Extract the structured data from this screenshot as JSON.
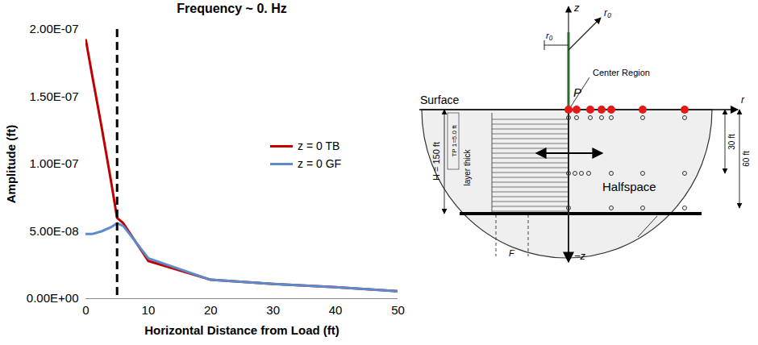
{
  "chart_data": {
    "type": "line",
    "title": "Frequency ~ 0. Hz",
    "x_label": "Horizontal Distance from Load (ft)",
    "y_label": "Amplitude (ft)",
    "x": [
      0,
      1,
      2.5,
      4,
      5,
      6,
      10,
      20,
      30,
      40,
      50
    ],
    "series": [
      {
        "name": "z = 0 TB",
        "color": "#c00000",
        "line_style": "solid",
        "values": [
          1.92e-07,
          1.66e-07,
          1.28e-07,
          8.8e-08,
          6e-08,
          5.6e-08,
          2.8e-08,
          1.4e-08,
          1.1e-08,
          8.5e-09,
          5.5e-09
        ]
      },
      {
        "name": "z = 0 GF",
        "color": "#5b8bc9",
        "line_style": "solid",
        "values": [
          4.8e-08,
          4.8e-08,
          5e-08,
          5.3e-08,
          5.6e-08,
          5.4e-08,
          3e-08,
          1.4e-08,
          1.1e-08,
          8.5e-09,
          5.5e-09
        ]
      }
    ],
    "xlim": [
      0,
      50
    ],
    "xticks": [
      0,
      10,
      20,
      30,
      40,
      50
    ],
    "ylim": [
      0,
      2e-07
    ],
    "yticks": [
      {
        "value": 0,
        "label": "0.00E+00"
      },
      {
        "value": 5e-08,
        "label": "5.00E-08"
      },
      {
        "value": 1e-07,
        "label": "1.00E-07"
      },
      {
        "value": 1.5e-07,
        "label": "1.50E-07"
      },
      {
        "value": 2e-07,
        "label": "2.00E-07"
      }
    ],
    "grid": false,
    "legend": "right",
    "vline": {
      "x": 5,
      "line_style": "dashed",
      "color": "#000000"
    }
  },
  "diagram": {
    "axis_up": "z",
    "axis_down": "−z",
    "radial_diag": "r₀",
    "radial_left": "r₀",
    "radial_right": "r",
    "load": "P",
    "center_region": "Center Region",
    "surface": "Surface",
    "halfspace": "Halfspace",
    "depth_1": "30 ft",
    "depth_2": "60 ft",
    "total_depth": "H = 150 ft",
    "first_layer": "TP 1=5.0 ft",
    "layer": "layer thick",
    "bottom_left": "F"
  }
}
